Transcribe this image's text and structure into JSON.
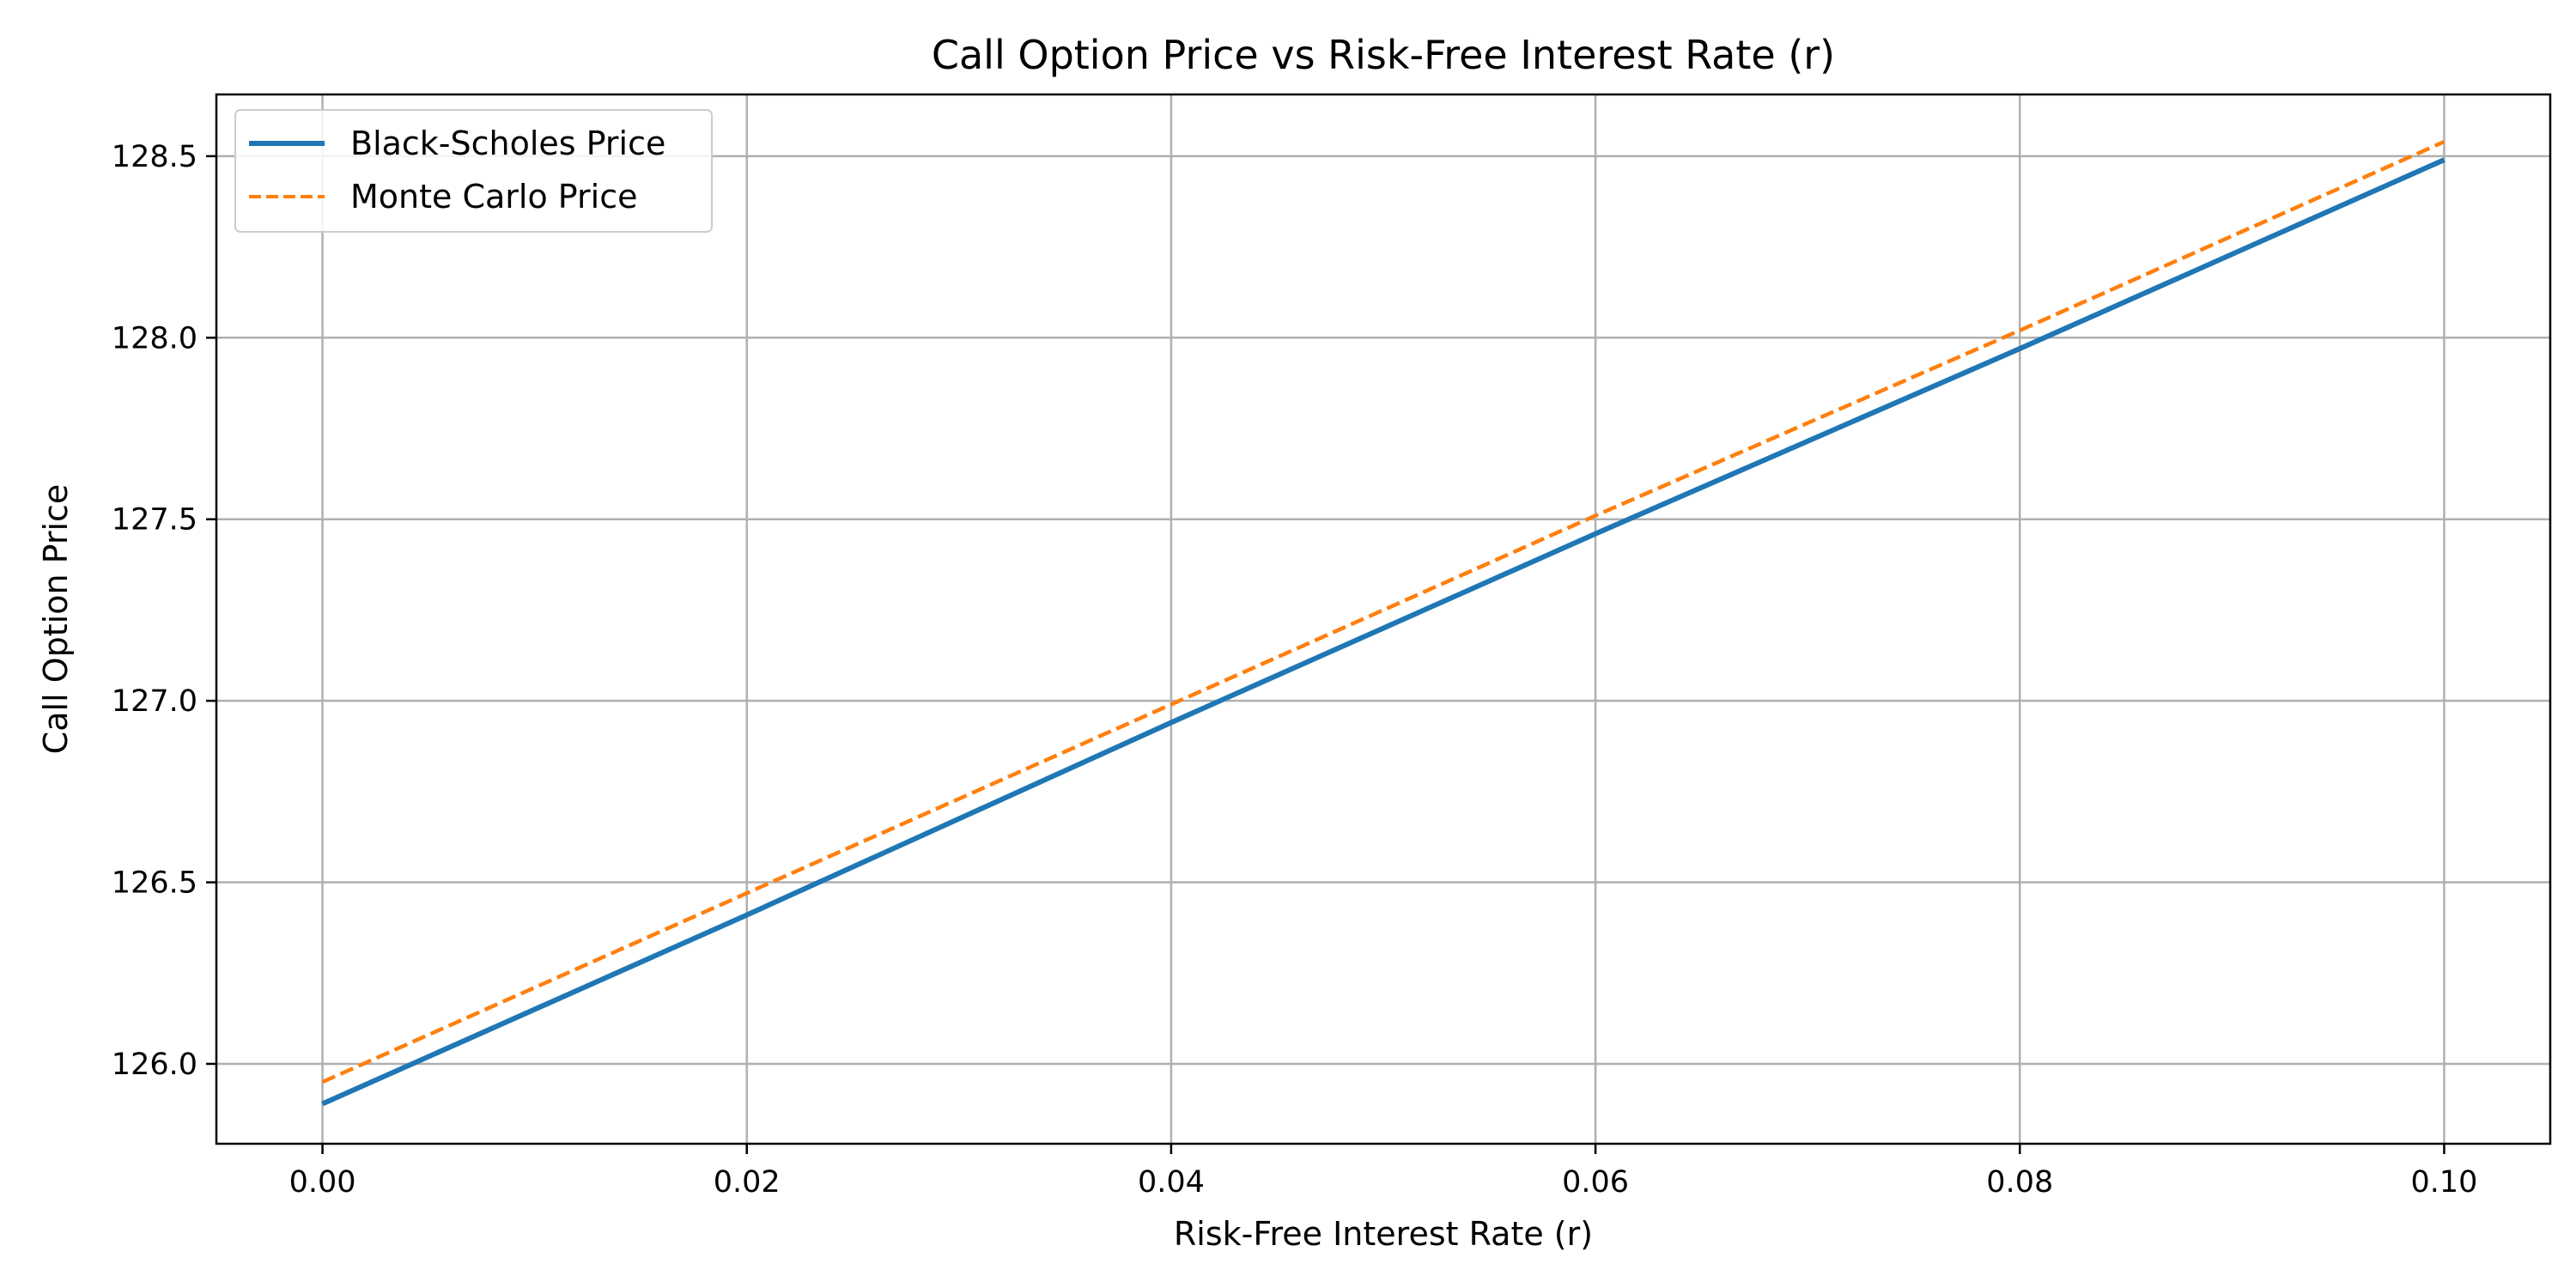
{
  "chart_data": {
    "type": "line",
    "title": "Call Option Price vs Risk-Free Interest Rate (r)",
    "xlabel": "Risk-Free Interest Rate (r)",
    "ylabel": "Call Option Price",
    "xlim": [
      -0.005,
      0.105
    ],
    "ylim": [
      125.78,
      128.67
    ],
    "xticks": [
      0.0,
      0.02,
      0.04,
      0.06,
      0.08,
      0.1
    ],
    "xtick_labels": [
      "0.00",
      "0.02",
      "0.04",
      "0.06",
      "0.08",
      "0.10"
    ],
    "yticks": [
      126.0,
      126.5,
      127.0,
      127.5,
      128.0,
      128.5
    ],
    "ytick_labels": [
      "126.0",
      "126.5",
      "127.0",
      "127.5",
      "128.0",
      "128.5"
    ],
    "grid": true,
    "legend_position": "top-left",
    "x": [
      0.0,
      0.02,
      0.04,
      0.06,
      0.08,
      0.1
    ],
    "series": [
      {
        "name": "Black-Scholes Price",
        "color": "#1f77b4",
        "style": "solid",
        "values": [
          125.89,
          126.41,
          126.94,
          127.46,
          127.97,
          128.49
        ]
      },
      {
        "name": "Monte Carlo Price",
        "color": "#ff7f0e",
        "style": "dashed",
        "values": [
          125.95,
          126.47,
          126.99,
          127.51,
          128.02,
          128.54
        ]
      }
    ]
  }
}
